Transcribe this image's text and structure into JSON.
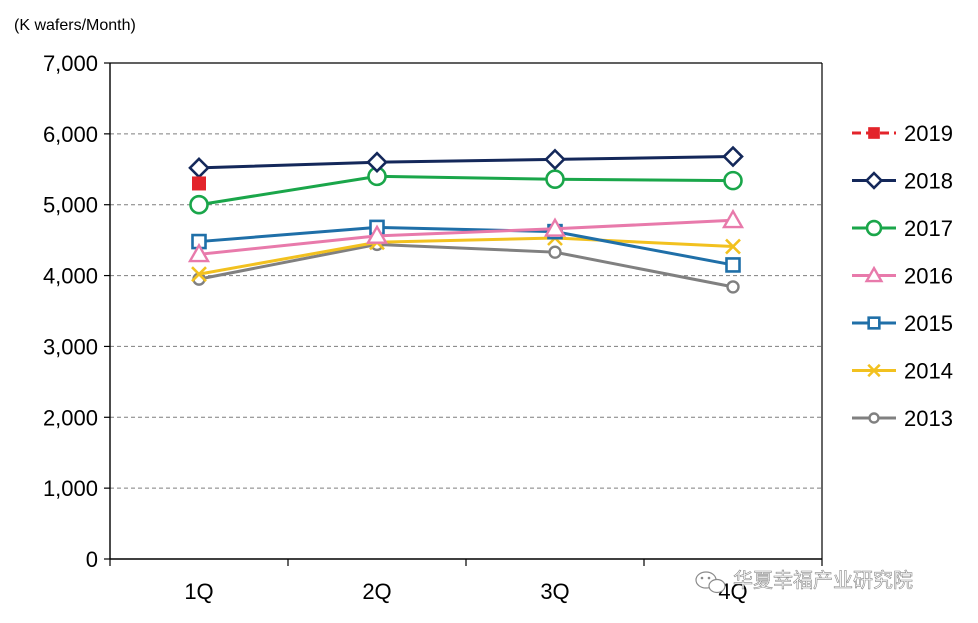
{
  "chart_data": {
    "type": "line",
    "title": "",
    "unit_label": "(K wafers/Month)",
    "xlabel": "",
    "ylabel": "",
    "categories": [
      "1Q",
      "2Q",
      "3Q",
      "4Q"
    ],
    "ylim": [
      0,
      7000
    ],
    "yticks": [
      0,
      1000,
      2000,
      3000,
      4000,
      5000,
      6000,
      7000
    ],
    "ytick_labels": [
      "0",
      "1,000",
      "2,000",
      "3,000",
      "4,000",
      "5,000",
      "6,000",
      "7,000"
    ],
    "grid": true,
    "legend_position": "right",
    "series": [
      {
        "name": "2019",
        "values": [
          5300,
          null,
          null,
          null
        ],
        "color": "#e3242b",
        "marker": "square-filled",
        "dash": true
      },
      {
        "name": "2018",
        "values": [
          5520,
          5600,
          5640,
          5680
        ],
        "color": "#14285a",
        "marker": "diamond",
        "dash": false
      },
      {
        "name": "2017",
        "values": [
          5000,
          5400,
          5360,
          5340
        ],
        "color": "#1aa64a",
        "marker": "circle",
        "dash": false
      },
      {
        "name": "2016",
        "values": [
          4300,
          4560,
          4660,
          4780
        ],
        "color": "#e87aab",
        "marker": "triangle",
        "dash": false
      },
      {
        "name": "2015",
        "values": [
          4480,
          4680,
          4620,
          4150
        ],
        "color": "#1f6fa8",
        "marker": "square",
        "dash": false
      },
      {
        "name": "2014",
        "values": [
          4020,
          4470,
          4530,
          4410
        ],
        "color": "#f2c11f",
        "marker": "x",
        "dash": false
      },
      {
        "name": "2013",
        "values": [
          3950,
          4440,
          4330,
          3840
        ],
        "color": "#808080",
        "marker": "small-circle",
        "dash": false
      }
    ]
  },
  "watermark": {
    "text": "华夏幸福产业研究院",
    "icon": "wechat-icon"
  }
}
